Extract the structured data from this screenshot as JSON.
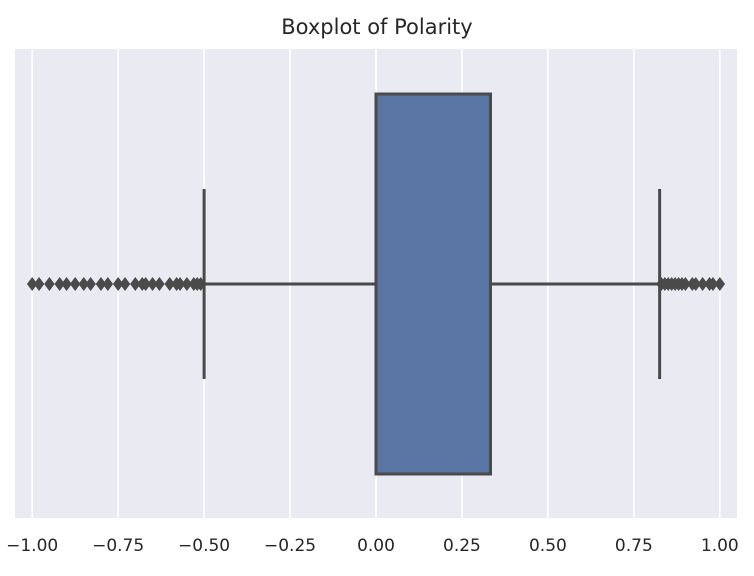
{
  "chart_data": {
    "type": "box",
    "title": "Boxplot of Polarity",
    "xlabel": "",
    "ylabel": "",
    "xlim": [
      -1.05,
      1.05
    ],
    "xticks": [
      -1.0,
      -0.75,
      -0.5,
      -0.25,
      0.0,
      0.25,
      0.5,
      0.75,
      1.0
    ],
    "xtick_labels": [
      "−1.00",
      "−0.75",
      "−0.50",
      "−0.25",
      "0.00",
      "0.25",
      "0.50",
      "0.75",
      "1.00"
    ],
    "grid": true,
    "box": {
      "q1": 0.0,
      "median": 0.0,
      "q3": 0.333,
      "whisker_low": -0.5,
      "whisker_high": 0.825,
      "fill_color": "#5875a4",
      "line_color": "#4a4a4a"
    },
    "outliers_low": [
      -1.0,
      -0.98,
      -0.95,
      -0.92,
      -0.9,
      -0.875,
      -0.85,
      -0.83,
      -0.8,
      -0.78,
      -0.75,
      -0.73,
      -0.7,
      -0.68,
      -0.67,
      -0.65,
      -0.63,
      -0.6,
      -0.58,
      -0.57,
      -0.55,
      -0.53,
      -0.52,
      -0.51
    ],
    "outliers_high": [
      0.83,
      0.84,
      0.85,
      0.86,
      0.87,
      0.88,
      0.89,
      0.9,
      0.92,
      0.93,
      0.95,
      0.97,
      0.98,
      1.0
    ]
  }
}
